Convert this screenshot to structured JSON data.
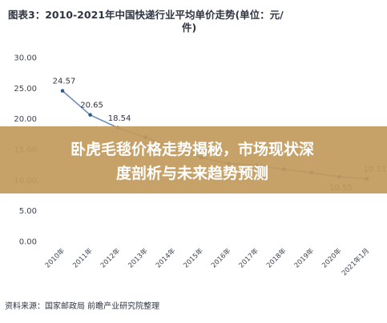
{
  "figure": {
    "title_line1": "图表3：2010-2021年中国快递行业平均单价走势(单位：元/",
    "title_line2": "件)",
    "source": "资料来源：国家邮政局 前瞻产业研究院整理"
  },
  "overlay": {
    "line1": "卧虎毛毯价格走势揭秘，市场现状深",
    "line2": "度剖析与未来趋势预测"
  },
  "chart_data": {
    "type": "line",
    "title": "2010-2021年中国快递行业平均单价走势(单位：元/件)",
    "categories": [
      "2010年",
      "2011年",
      "2012年",
      "2013年",
      "2014年",
      "2015年",
      "2016年",
      "2017年",
      "2018年",
      "2019年",
      "2020年",
      "2021年1月"
    ],
    "series": [
      {
        "values": [
          24.57,
          20.65,
          18.54,
          17.0,
          15.3,
          13.7,
          12.7,
          12.4,
          11.8,
          11.2,
          10.55,
          10.21
        ]
      }
    ],
    "data_labels": [
      "24.57",
      "20.65",
      "18.54",
      "",
      "",
      "",
      "",
      "",
      "",
      "",
      "10.55",
      "10.21"
    ],
    "y_ticks": [
      "0.00",
      "5.00",
      "10.00",
      "15.00",
      "20.00",
      "25.00",
      "30.00"
    ],
    "ylim": [
      0,
      30
    ],
    "grid": false,
    "colors": {
      "line": "#6f8fb2",
      "marker": "#2f5b95",
      "banner": "#c29a5c"
    }
  }
}
